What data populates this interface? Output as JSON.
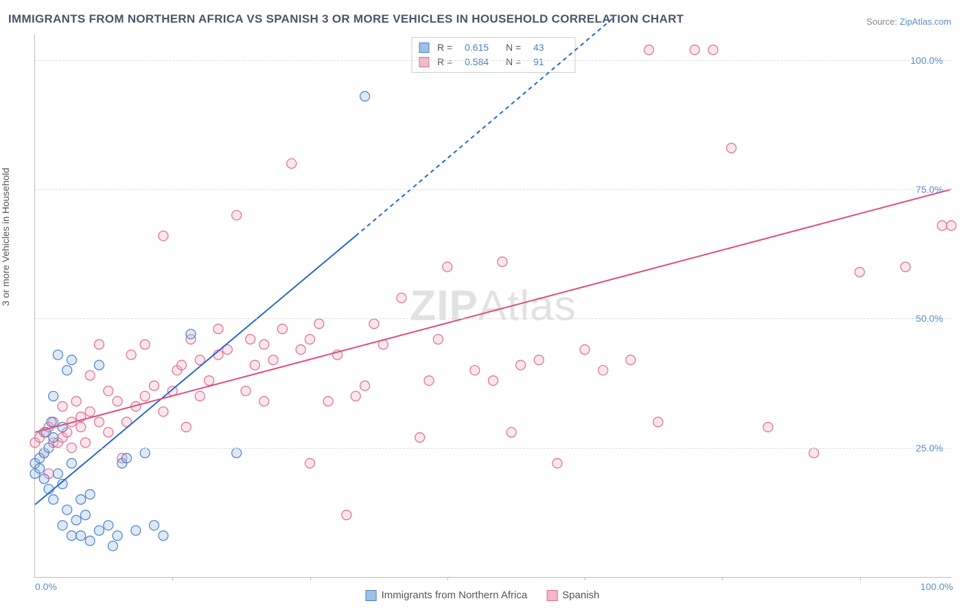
{
  "title": "IMMIGRANTS FROM NORTHERN AFRICA VS SPANISH 3 OR MORE VEHICLES IN HOUSEHOLD CORRELATION CHART",
  "source_label": "Source:",
  "source_name": "ZipAtlas.com",
  "ylabel": "3 or more Vehicles in Household",
  "watermark_a": "ZIP",
  "watermark_b": "Atlas",
  "chart": {
    "type": "scatter",
    "background_color": "#ffffff",
    "grid_color": "#dddddd",
    "axis_color": "#bbbbbb",
    "xlim": [
      0,
      100
    ],
    "ylim": [
      0,
      105
    ],
    "xticks": [
      0,
      100
    ],
    "xtick_labels": [
      "0.0%",
      "100.0%"
    ],
    "xtick_minor": [
      15,
      30,
      45,
      60,
      75,
      90
    ],
    "yticks": [
      25,
      50,
      75,
      100
    ],
    "ytick_labels": [
      "25.0%",
      "50.0%",
      "75.0%",
      "100.0%"
    ],
    "marker_radius": 7,
    "marker_fill_opacity": 0.35,
    "marker_stroke_width": 1.2,
    "series": [
      {
        "id": "immigrants_northern_africa",
        "label": "Immigrants from Northern Africa",
        "color_stroke": "#4a7fc9",
        "color_fill": "#9ec1e8",
        "R": 0.615,
        "N": 43,
        "trendline": {
          "x1": 0,
          "y1": 14,
          "x2": 35,
          "y2": 66,
          "color": "#2266cc",
          "width": 2,
          "dash_extend_x2": 63,
          "dash_extend_y2": 108
        },
        "points": [
          [
            0,
            20
          ],
          [
            0,
            22
          ],
          [
            0.5,
            21
          ],
          [
            0.5,
            23
          ],
          [
            1,
            19
          ],
          [
            1,
            24
          ],
          [
            1.2,
            28
          ],
          [
            1.5,
            17
          ],
          [
            1.5,
            25
          ],
          [
            1.8,
            30
          ],
          [
            2,
            15
          ],
          [
            2,
            27
          ],
          [
            2,
            35
          ],
          [
            2.5,
            20
          ],
          [
            2.5,
            43
          ],
          [
            3,
            10
          ],
          [
            3,
            18
          ],
          [
            3,
            29
          ],
          [
            3.5,
            13
          ],
          [
            3.5,
            40
          ],
          [
            4,
            8
          ],
          [
            4,
            22
          ],
          [
            4,
            42
          ],
          [
            4.5,
            11
          ],
          [
            5,
            15
          ],
          [
            5,
            8
          ],
          [
            5.5,
            12
          ],
          [
            6,
            7
          ],
          [
            6,
            16
          ],
          [
            7,
            9
          ],
          [
            7,
            41
          ],
          [
            8,
            10
          ],
          [
            8.5,
            6
          ],
          [
            9,
            8
          ],
          [
            9.5,
            22
          ],
          [
            10,
            23
          ],
          [
            11,
            9
          ],
          [
            12,
            24
          ],
          [
            13,
            10
          ],
          [
            14,
            8
          ],
          [
            17,
            47
          ],
          [
            22,
            24
          ],
          [
            36,
            93
          ]
        ]
      },
      {
        "id": "spanish",
        "label": "Spanish",
        "color_stroke": "#e06b8f",
        "color_fill": "#f4b6c9",
        "R": 0.584,
        "N": 91,
        "trendline": {
          "x1": 0,
          "y1": 28,
          "x2": 100,
          "y2": 75,
          "color": "#e24a7a",
          "width": 2
        },
        "points": [
          [
            0,
            26
          ],
          [
            0.5,
            27
          ],
          [
            1,
            28
          ],
          [
            1,
            24
          ],
          [
            1.5,
            29
          ],
          [
            1.5,
            20
          ],
          [
            2,
            30
          ],
          [
            2,
            26
          ],
          [
            2.5,
            26
          ],
          [
            3,
            27
          ],
          [
            3,
            33
          ],
          [
            3.5,
            28
          ],
          [
            4,
            30
          ],
          [
            4,
            25
          ],
          [
            4.5,
            34
          ],
          [
            5,
            29
          ],
          [
            5,
            31
          ],
          [
            5.5,
            26
          ],
          [
            6,
            32
          ],
          [
            6,
            39
          ],
          [
            7,
            30
          ],
          [
            7,
            45
          ],
          [
            8,
            28
          ],
          [
            8,
            36
          ],
          [
            9,
            34
          ],
          [
            9.5,
            23
          ],
          [
            10,
            30
          ],
          [
            10.5,
            43
          ],
          [
            11,
            33
          ],
          [
            12,
            35
          ],
          [
            12,
            45
          ],
          [
            13,
            37
          ],
          [
            14,
            32
          ],
          [
            14,
            66
          ],
          [
            15,
            36
          ],
          [
            15.5,
            40
          ],
          [
            16,
            41
          ],
          [
            16.5,
            29
          ],
          [
            17,
            46
          ],
          [
            18,
            35
          ],
          [
            18,
            42
          ],
          [
            19,
            38
          ],
          [
            20,
            43
          ],
          [
            20,
            48
          ],
          [
            21,
            44
          ],
          [
            22,
            70
          ],
          [
            23,
            36
          ],
          [
            23.5,
            46
          ],
          [
            24,
            41
          ],
          [
            25,
            45
          ],
          [
            25,
            34
          ],
          [
            26,
            42
          ],
          [
            27,
            48
          ],
          [
            28,
            80
          ],
          [
            29,
            44
          ],
          [
            30,
            22
          ],
          [
            30,
            46
          ],
          [
            31,
            49
          ],
          [
            32,
            34
          ],
          [
            33,
            43
          ],
          [
            34,
            12
          ],
          [
            35,
            35
          ],
          [
            36,
            37
          ],
          [
            37,
            49
          ],
          [
            38,
            45
          ],
          [
            40,
            54
          ],
          [
            42,
            27
          ],
          [
            43,
            38
          ],
          [
            44,
            46
          ],
          [
            45,
            60
          ],
          [
            48,
            40
          ],
          [
            50,
            38
          ],
          [
            51,
            61
          ],
          [
            52,
            28
          ],
          [
            53,
            41
          ],
          [
            55,
            42
          ],
          [
            57,
            22
          ],
          [
            60,
            44
          ],
          [
            62,
            40
          ],
          [
            65,
            42
          ],
          [
            67,
            102
          ],
          [
            68,
            30
          ],
          [
            74,
            102
          ],
          [
            76,
            83
          ],
          [
            80,
            29
          ],
          [
            85,
            24
          ],
          [
            90,
            59
          ],
          [
            95,
            60
          ],
          [
            99,
            68
          ],
          [
            72,
            102
          ],
          [
            100,
            68
          ]
        ]
      }
    ]
  },
  "legend_top": {
    "rows": [
      {
        "swatch_fill": "#9ec1e8",
        "swatch_stroke": "#4a7fc9",
        "R_label": "R =",
        "R_value": "0.615",
        "N_label": "N =",
        "N_value": "43"
      },
      {
        "swatch_fill": "#f4b6c9",
        "swatch_stroke": "#e06b8f",
        "R_label": "R =",
        "R_value": "0.584",
        "N_label": "N =",
        "N_value": "91"
      }
    ]
  },
  "legend_bottom": {
    "items": [
      {
        "swatch_fill": "#9ec1e8",
        "swatch_stroke": "#4a7fc9",
        "label": "Immigrants from Northern Africa"
      },
      {
        "swatch_fill": "#f4b6c9",
        "swatch_stroke": "#e06b8f",
        "label": "Spanish"
      }
    ]
  }
}
